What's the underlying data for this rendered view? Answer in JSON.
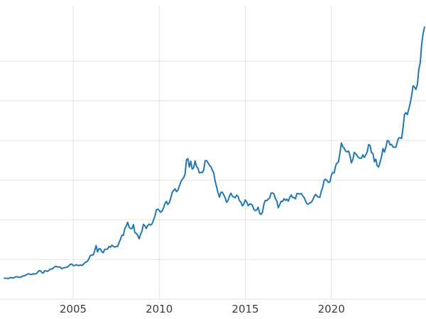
{
  "chart_data": {
    "type": "line",
    "title": "",
    "xlabel": "",
    "ylabel": "",
    "series_name": "price",
    "line_color": "#1f77b4",
    "grid_color": "#e1e1e1",
    "tick_label_color": "#3b3b3b",
    "background": "#ffffff",
    "grid": true,
    "legend": false,
    "x_ticks": [
      2005,
      2010,
      2015,
      2020
    ],
    "x_tick_labels": [
      "2005",
      "2010",
      "2015",
      "2020"
    ],
    "xlim": [
      2000.75,
      2025.5
    ],
    "ylim": [
      0,
      3700
    ],
    "y_gridline_step": 500,
    "x_start": 2001.0,
    "x_step": 0.0833333,
    "values": [
      265,
      262,
      263,
      260,
      272,
      270,
      267,
      272,
      283,
      283,
      276,
      276,
      281,
      295,
      294,
      303,
      314,
      321,
      313,
      310,
      319,
      316,
      319,
      333,
      357,
      359,
      340,
      328,
      355,
      356,
      351,
      360,
      379,
      379,
      389,
      407,
      414,
      405,
      406,
      404,
      383,
      392,
      398,
      400,
      405,
      420,
      439,
      442,
      424,
      423,
      434,
      429,
      422,
      431,
      424,
      437,
      456,
      470,
      477,
      510,
      550,
      555,
      557,
      611,
      676,
      596,
      634,
      633,
      599,
      586,
      628,
      630,
      631,
      665,
      655,
      680,
      667,
      656,
      665,
      665,
      713,
      755,
      806,
      804,
      890,
      922,
      968,
      910,
      889,
      889,
      940,
      839,
      829,
      807,
      761,
      816,
      858,
      943,
      924,
      890,
      929,
      946,
      934,
      950,
      997,
      1043,
      1127,
      1135,
      1118,
      1095,
      1113,
      1149,
      1205,
      1233,
      1193,
      1216,
      1271,
      1342,
      1370,
      1391,
      1356,
      1373,
      1424,
      1474,
      1511,
      1529,
      1573,
      1756,
      1772,
      1666,
      1739,
      1640,
      1656,
      1743,
      1674,
      1650,
      1591,
      1598,
      1595,
      1626,
      1744,
      1747,
      1721,
      1688,
      1671,
      1628,
      1593,
      1487,
      1414,
      1343,
      1286,
      1347,
      1348,
      1316,
      1276,
      1221,
      1244,
      1301,
      1336,
      1298,
      1289,
      1279,
      1311,
      1295,
      1238,
      1223,
      1176,
      1201,
      1251,
      1227,
      1178,
      1198,
      1199,
      1181,
      1130,
      1117,
      1125,
      1159,
      1086,
      1068,
      1097,
      1199,
      1246,
      1242,
      1260,
      1276,
      1337,
      1340,
      1326,
      1266,
      1238,
      1152,
      1192,
      1234,
      1231,
      1266,
      1246,
      1260,
      1236,
      1283,
      1314,
      1280,
      1282,
      1264,
      1331,
      1330,
      1325,
      1334,
      1303,
      1281,
      1238,
      1201,
      1198,
      1215,
      1221,
      1250,
      1292,
      1320,
      1301,
      1286,
      1284,
      1359,
      1413,
      1500,
      1511,
      1495,
      1471,
      1479,
      1561,
      1597,
      1592,
      1683,
      1716,
      1732,
      1843,
      1969,
      1922,
      1900,
      1866,
      1858,
      1867,
      1808,
      1718,
      1762,
      1850,
      1835,
      1807,
      1784,
      1776,
      1777,
      1820,
      1787,
      1817,
      1856,
      1948,
      1937,
      1848,
      1837,
      1733,
      1766,
      1681,
      1665,
      1726,
      1797,
      1898,
      1855,
      1913,
      2000,
      1992,
      1943,
      1951,
      1918,
      1916,
      1915,
      1984,
      2034,
      2034,
      2025,
      2160,
      2330,
      2351,
      2327,
      2398,
      2470,
      2568,
      2690,
      2672,
      2644,
      2708,
      2897,
      2984,
      3218,
      3350,
      3430
    ]
  }
}
